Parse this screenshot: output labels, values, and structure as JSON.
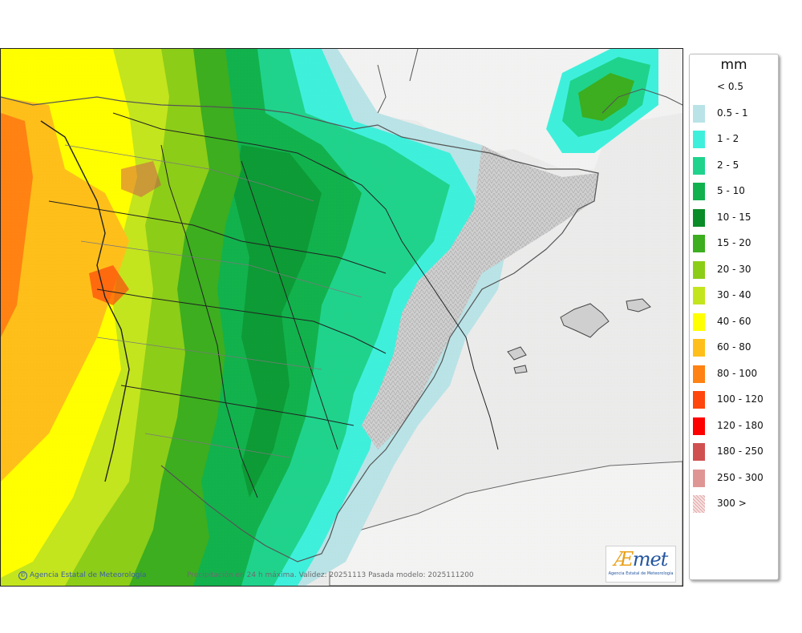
{
  "legend": {
    "unit": "mm",
    "items": [
      {
        "label": "< 0.5",
        "color": "#ffffff"
      },
      {
        "label": "0.5 - 1",
        "color": "#b9e3e7"
      },
      {
        "label": "1 - 2",
        "color": "#3ef0dc"
      },
      {
        "label": "2 - 5",
        "color": "#1fd38c"
      },
      {
        "label": "5 - 10",
        "color": "#11b24d"
      },
      {
        "label": "10 - 15",
        "color": "#0a8c28"
      },
      {
        "label": "15 - 20",
        "color": "#3cae1f"
      },
      {
        "label": "20 - 30",
        "color": "#8ccd18"
      },
      {
        "label": "30 - 40",
        "color": "#c3e51e"
      },
      {
        "label": "40 - 60",
        "color": "#ffff00"
      },
      {
        "label": "60 - 80",
        "color": "#ffbf1a"
      },
      {
        "label": "80 - 100",
        "color": "#ff8212"
      },
      {
        "label": "100 - 120",
        "color": "#ff460c"
      },
      {
        "label": "120 - 180",
        "color": "#ff0000"
      },
      {
        "label": "180 - 250",
        "color": "#d05050"
      },
      {
        "label": "250 - 300",
        "color": "#e09595"
      },
      {
        "label": "300 >",
        "color": "#f4d6d6"
      }
    ]
  },
  "footer": {
    "copyright": "Agencia Estatal de Meteorología",
    "caption": "Precipitación en 24 h máxima. Validez: 20251113 Pasada modelo: 2025111200"
  },
  "logo": {
    "mark_a": "Æ",
    "mark_rest": "met",
    "subtitle": "Agencia Estatal de Meteorología"
  }
}
